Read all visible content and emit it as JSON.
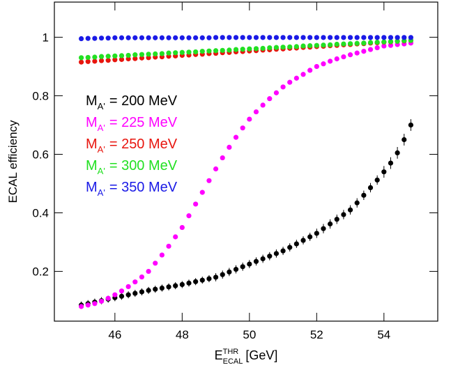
{
  "chart_data": {
    "type": "scatter",
    "xlabel": {
      "main": "E",
      "sub": "ECAL",
      "sup": "THR",
      "unit": "[GeV]"
    },
    "ylabel": "ECAL efficiency",
    "legend_symbol": {
      "main": "M",
      "sub": "A'"
    },
    "xlim": [
      44.2,
      55.6
    ],
    "ylim": [
      0.03,
      1.12
    ],
    "xticks": [
      46,
      48,
      50,
      52,
      54
    ],
    "yticks": [
      0.2,
      0.4,
      0.6,
      0.8,
      1
    ],
    "x": [
      45.0,
      45.2,
      45.4,
      45.6,
      45.8,
      46.0,
      46.2,
      46.4,
      46.6,
      46.8,
      47.0,
      47.2,
      47.4,
      47.6,
      47.8,
      48.0,
      48.2,
      48.4,
      48.6,
      48.8,
      49.0,
      49.2,
      49.4,
      49.6,
      49.8,
      50.0,
      50.2,
      50.4,
      50.6,
      50.8,
      51.0,
      51.2,
      51.4,
      51.6,
      51.8,
      52.0,
      52.2,
      52.4,
      52.6,
      52.8,
      53.0,
      53.2,
      53.4,
      53.6,
      53.8,
      54.0,
      54.2,
      54.4,
      54.6,
      54.8
    ],
    "series": [
      {
        "name": "= 200 MeV",
        "color": "#000000",
        "values": [
          0.085,
          0.09,
          0.095,
          0.1,
          0.105,
          0.11,
          0.115,
          0.12,
          0.125,
          0.13,
          0.135,
          0.139,
          0.143,
          0.147,
          0.151,
          0.155,
          0.16,
          0.165,
          0.17,
          0.175,
          0.18,
          0.189,
          0.198,
          0.207,
          0.216,
          0.225,
          0.234,
          0.243,
          0.252,
          0.261,
          0.27,
          0.282,
          0.294,
          0.306,
          0.318,
          0.33,
          0.346,
          0.362,
          0.378,
          0.394,
          0.41,
          0.434,
          0.46,
          0.486,
          0.512,
          0.54,
          0.57,
          0.605,
          0.65,
          0.7
        ],
        "errors": [
          0.012,
          0.012,
          0.012,
          0.012,
          0.012,
          0.012,
          0.012,
          0.012,
          0.012,
          0.012,
          0.012,
          0.012,
          0.012,
          0.012,
          0.012,
          0.012,
          0.012,
          0.012,
          0.012,
          0.012,
          0.014,
          0.014,
          0.014,
          0.014,
          0.014,
          0.014,
          0.014,
          0.014,
          0.014,
          0.014,
          0.014,
          0.014,
          0.014,
          0.014,
          0.014,
          0.016,
          0.016,
          0.016,
          0.016,
          0.016,
          0.016,
          0.016,
          0.016,
          0.016,
          0.016,
          0.02,
          0.02,
          0.02,
          0.02,
          0.02
        ]
      },
      {
        "name": "= 225 MeV",
        "color": "#ff00ff",
        "values": [
          0.08,
          0.085,
          0.09,
          0.098,
          0.108,
          0.12,
          0.133,
          0.148,
          0.164,
          0.181,
          0.2,
          0.228,
          0.256,
          0.286,
          0.318,
          0.35,
          0.39,
          0.43,
          0.47,
          0.51,
          0.55,
          0.588,
          0.624,
          0.658,
          0.69,
          0.72,
          0.745,
          0.768,
          0.79,
          0.81,
          0.83,
          0.846,
          0.86,
          0.873,
          0.887,
          0.9,
          0.909,
          0.918,
          0.926,
          0.933,
          0.94,
          0.946,
          0.952,
          0.958,
          0.964,
          0.97,
          0.972,
          0.975,
          0.977,
          0.98
        ]
      },
      {
        "name": "= 250 MeV",
        "color": "#e8150e",
        "values": [
          0.915,
          0.917,
          0.918,
          0.92,
          0.921,
          0.923,
          0.924,
          0.926,
          0.927,
          0.929,
          0.93,
          0.932,
          0.933,
          0.935,
          0.936,
          0.938,
          0.939,
          0.941,
          0.942,
          0.944,
          0.945,
          0.947,
          0.948,
          0.95,
          0.951,
          0.953,
          0.954,
          0.956,
          0.957,
          0.959,
          0.96,
          0.962,
          0.963,
          0.965,
          0.966,
          0.968,
          0.969,
          0.971,
          0.972,
          0.974,
          0.975,
          0.977,
          0.978,
          0.98,
          0.981,
          0.983,
          0.984,
          0.986,
          0.987,
          0.989
        ]
      },
      {
        "name": "= 300 MeV",
        "color": "#22e022",
        "values": [
          0.93,
          0.931,
          0.932,
          0.934,
          0.935,
          0.936,
          0.937,
          0.938,
          0.94,
          0.941,
          0.942,
          0.943,
          0.944,
          0.946,
          0.947,
          0.948,
          0.949,
          0.95,
          0.952,
          0.953,
          0.954,
          0.955,
          0.956,
          0.958,
          0.959,
          0.96,
          0.961,
          0.962,
          0.964,
          0.965,
          0.966,
          0.967,
          0.968,
          0.97,
          0.971,
          0.972,
          0.973,
          0.974,
          0.976,
          0.977,
          0.978,
          0.979,
          0.98,
          0.982,
          0.983,
          0.984,
          0.985,
          0.986,
          0.988,
          0.989
        ]
      },
      {
        "name": "= 350 MeV",
        "color": "#1a1ae6",
        "values": [
          0.995,
          0.996,
          0.996,
          0.997,
          0.997,
          0.998,
          0.998,
          0.998,
          0.998,
          0.998,
          0.998,
          0.998,
          0.998,
          0.998,
          0.998,
          0.998,
          0.998,
          0.998,
          0.998,
          0.998,
          0.999,
          0.999,
          0.999,
          0.999,
          0.999,
          0.999,
          0.999,
          0.999,
          0.999,
          0.999,
          0.999,
          0.999,
          0.999,
          0.999,
          0.999,
          0.999,
          0.999,
          0.999,
          0.999,
          0.999,
          0.999,
          0.999,
          0.999,
          0.999,
          0.999,
          0.999,
          0.999,
          0.999,
          0.999,
          0.999
        ]
      }
    ]
  }
}
